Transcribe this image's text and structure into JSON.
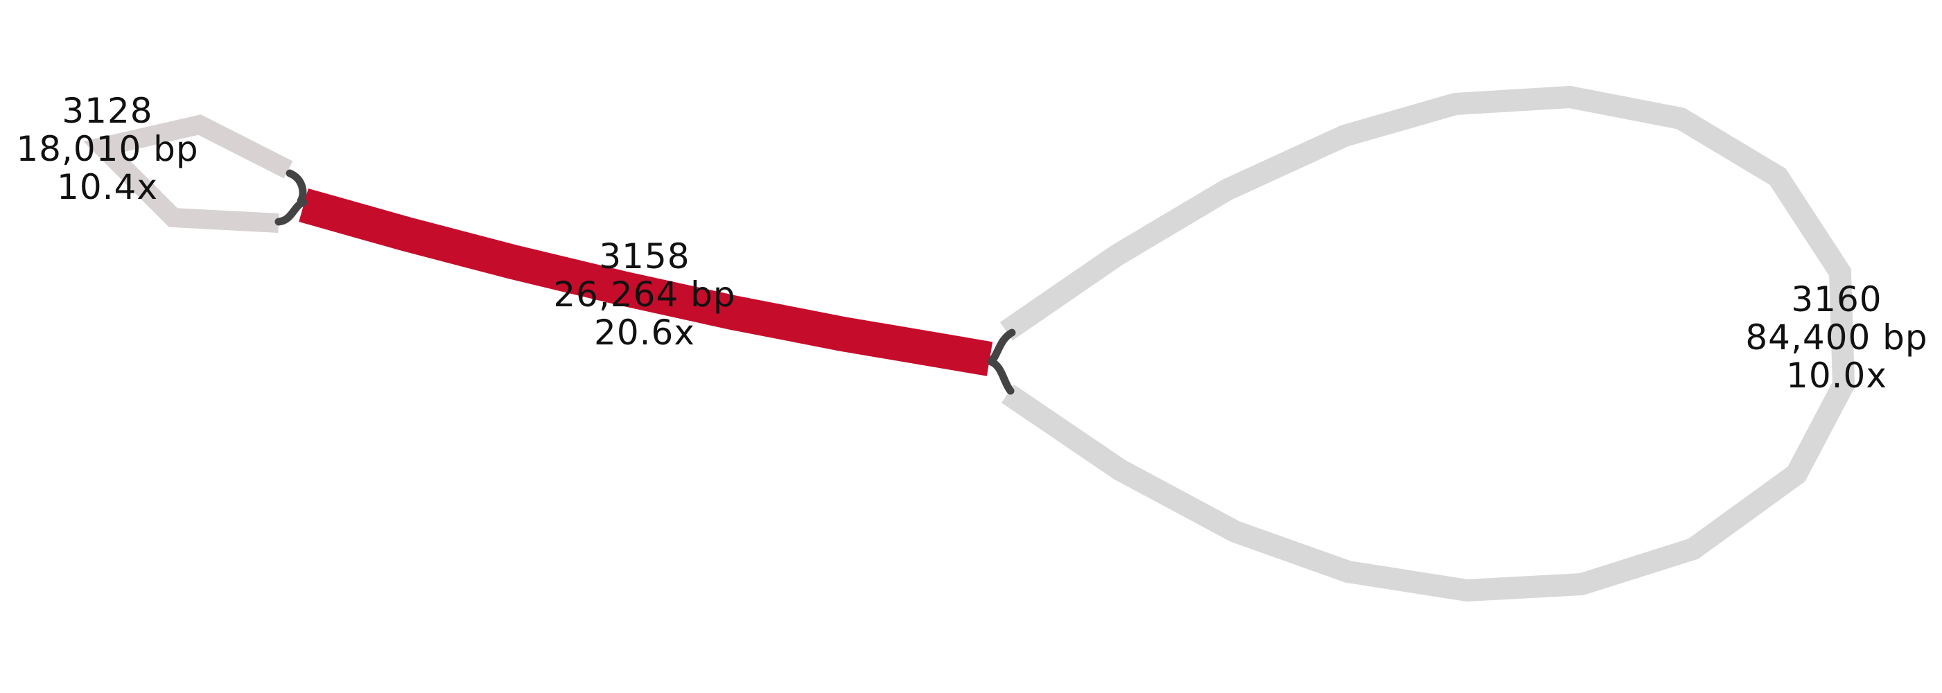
{
  "colors": {
    "highlight": "#c60c2b",
    "segment": "#d8d8d8",
    "segment_small": "#d8d2d2",
    "link": "#444444",
    "background": "#ffffff",
    "text": "#111111"
  },
  "nodes": [
    {
      "id": "3128",
      "name": "3128",
      "length": "18,010 bp",
      "depth": "10.4x",
      "highlighted": false
    },
    {
      "id": "3158",
      "name": "3158",
      "length": "26,264 bp",
      "depth": "20.6x",
      "highlighted": true
    },
    {
      "id": "3160",
      "name": "3160",
      "length": "84,400 bp",
      "depth": "10.0x",
      "highlighted": false
    }
  ],
  "edges": [
    {
      "from": "3128",
      "to": "3158"
    },
    {
      "from": "3158",
      "to": "3160"
    },
    {
      "from": "3160",
      "to": "3158"
    }
  ]
}
